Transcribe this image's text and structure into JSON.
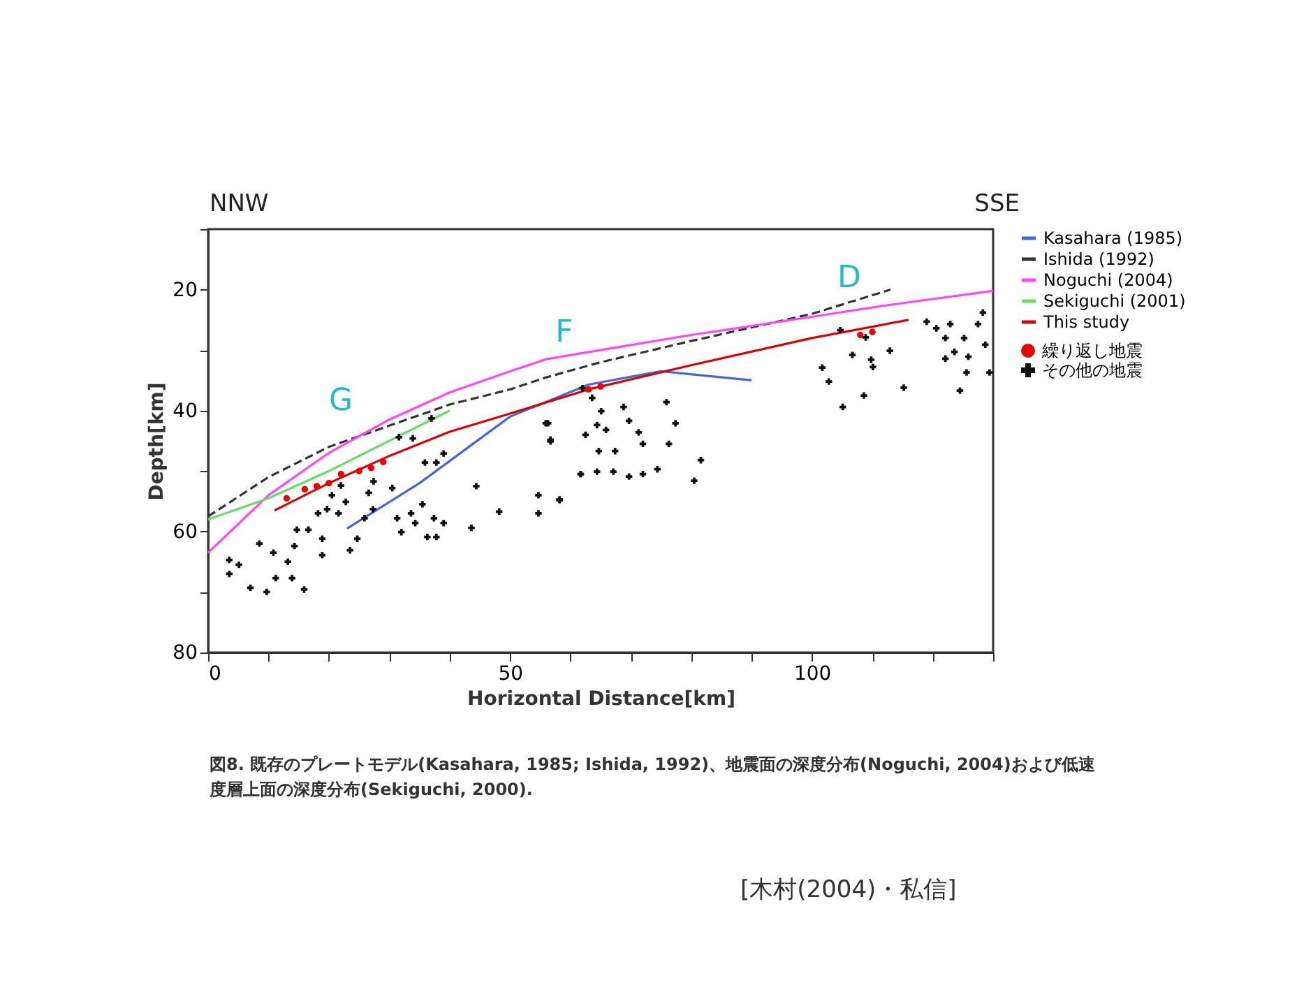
{
  "chart_data": {
    "type": "line",
    "xlabel": "Horizontal Distance[km]",
    "ylabel": "Depth[km]",
    "xlim": [
      0,
      130
    ],
    "ylim": [
      80,
      10
    ],
    "xticks": [
      0,
      {
        "value": 10,
        "label": null
      },
      {
        "value": 20,
        "label": null
      },
      {
        "value": 30,
        "label": null
      },
      {
        "value": 40,
        "label": null
      },
      50,
      {
        "value": 60,
        "label": null
      },
      {
        "value": 70,
        "label": null
      },
      {
        "value": 80,
        "label": null
      },
      {
        "value": 90,
        "label": null
      },
      100,
      {
        "value": 110,
        "label": null
      },
      {
        "value": 120,
        "label": null
      },
      {
        "value": 130,
        "label": null
      }
    ],
    "yticks": [
      {
        "value": 10,
        "label": null
      },
      20,
      {
        "value": 30,
        "label": null
      },
      40,
      {
        "value": 50,
        "label": null
      },
      60,
      {
        "value": 70,
        "label": null
      },
      80
    ],
    "legend": "right",
    "series": [
      {
        "name": "Kasahara (1985)",
        "type": "line",
        "color": "#4466dd",
        "x": [
          23,
          35,
          50,
          63,
          75,
          90
        ],
        "values": [
          59.5,
          52,
          41,
          35.7,
          33.5,
          35
        ]
      },
      {
        "name": "Ishida (1992)",
        "type": "line",
        "color": "#333333",
        "line_style": "dashed",
        "x": [
          0,
          10,
          20,
          30,
          40,
          50,
          56,
          65,
          80,
          100,
          113
        ],
        "values": [
          57.5,
          51,
          46,
          42.5,
          39,
          36.5,
          34.5,
          32,
          28.5,
          24,
          20
        ]
      },
      {
        "name": "Noguchi (2004)",
        "type": "line",
        "color": "#ff44ff",
        "x": [
          0,
          10,
          20,
          30,
          40,
          50,
          56,
          65,
          80,
          100,
          113,
          130
        ],
        "values": [
          63.5,
          54,
          47,
          41.5,
          37,
          33.5,
          31.5,
          30,
          27.5,
          24.5,
          22.5,
          20.2
        ]
      },
      {
        "name": "Sekiguchi (2001)",
        "type": "line",
        "color": "#66dd66",
        "x": [
          0,
          10,
          20,
          30,
          40
        ],
        "values": [
          58,
          54.5,
          50,
          45,
          40
        ]
      },
      {
        "name": "This study",
        "type": "line",
        "color": "#dd0000",
        "x": [
          11,
          20,
          30,
          40,
          50,
          63,
          80,
          100,
          116
        ],
        "values": [
          56.5,
          52,
          47.5,
          43.5,
          40.5,
          36.5,
          32.5,
          28,
          25
        ]
      },
      {
        "name": "繰り返し地震",
        "type": "scatter",
        "marker": "circle",
        "color": "#ee0000",
        "x": [
          13,
          16,
          18,
          20,
          22,
          25,
          27,
          29,
          63,
          65,
          108,
          110
        ],
        "values": [
          54.5,
          53,
          52.5,
          52,
          50.5,
          50,
          49.5,
          48.5,
          36.5,
          36,
          27.5,
          27
        ]
      },
      {
        "name": "その他の地震",
        "type": "scatter",
        "marker": "cross",
        "color": "#111111",
        "x": [
          3.5,
          5.1,
          3.5,
          7,
          9.7,
          8.5,
          10.8,
          13.2,
          11.2,
          13.9,
          15.9,
          14.7,
          16.6,
          14.3,
          18.9,
          18.9,
          18.2,
          19.7,
          21.6,
          20.5,
          22.8,
          22,
          23.5,
          24.7,
          26.6,
          27.4,
          25.9,
          27.3,
          30.5,
          31.3,
          32,
          33.6,
          34.3,
          35.5,
          37.4,
          37.8,
          36.3,
          39,
          35.9,
          37.8,
          39,
          37,
          31.6,
          33.9,
          43.6,
          44.4,
          48.2,
          54.7,
          54.7,
          58.2,
          56.3,
          56.7,
          61.7,
          62.5,
          55.9,
          56.7,
          58.2,
          62,
          63.6,
          65.1,
          64.4,
          65.9,
          68.8,
          69.7,
          71.3,
          72,
          64.7,
          67.4,
          75.9,
          77.4,
          76.3,
          61.7,
          64.4,
          67.1,
          69.7,
          72,
          74.4,
          81.6,
          80.5,
          101.7,
          102.8,
          105.1,
          108.6,
          106.7,
          109.8,
          110.1,
          112.9,
          115.2,
          104.7,
          108.9,
          119,
          120.6,
          122.9,
          122.1,
          125.2,
          123.6,
          125.9,
          128.3,
          128.7,
          129.4,
          125.6,
          124.5,
          127.5,
          122.1
        ],
        "values": [
          64.7,
          65.5,
          67,
          69.3,
          70,
          62,
          63.5,
          65,
          67.7,
          67.7,
          69.6,
          59.7,
          59.7,
          62.4,
          63.9,
          61.2,
          57,
          56.3,
          57,
          54,
          55.1,
          52.4,
          63.1,
          61.2,
          53.6,
          51.7,
          57.8,
          56.3,
          52.8,
          57.8,
          60.1,
          57,
          58.6,
          55.5,
          57.8,
          60.9,
          60.9,
          58.6,
          48.6,
          48.6,
          47.1,
          41.3,
          44.4,
          44.6,
          59.4,
          52.5,
          56.7,
          54,
          57,
          54.8,
          42.1,
          45.1,
          50.5,
          44,
          42.1,
          44.8,
          54.7,
          36.3,
          37.9,
          40.1,
          42.4,
          43.2,
          39.4,
          41.7,
          43.6,
          45.5,
          46.7,
          46.7,
          38.6,
          42.1,
          45.5,
          50.5,
          50.1,
          50.1,
          50.9,
          50.5,
          49.7,
          48.2,
          51.6,
          32.9,
          35.2,
          39.4,
          37.5,
          30.8,
          31.6,
          32.8,
          30.1,
          36.2,
          26.7,
          27.9,
          25.3,
          26.4,
          25.7,
          28,
          28,
          30.3,
          31.1,
          23.8,
          29.1,
          33.7,
          33.7,
          36.7,
          25.7,
          31.4
        ]
      }
    ],
    "annotations": [
      "NNW",
      "SSE",
      "G",
      "F",
      "D",
      "図8. 既存のプレートモデル(Kasahara, 1985; Ishida, 1992)、地震面の深度分布(Noguchi, 2004)および低速度層上面の深度分布(Sekiguchi, 2000).",
      "[木村(2004)・私信]"
    ]
  }
}
